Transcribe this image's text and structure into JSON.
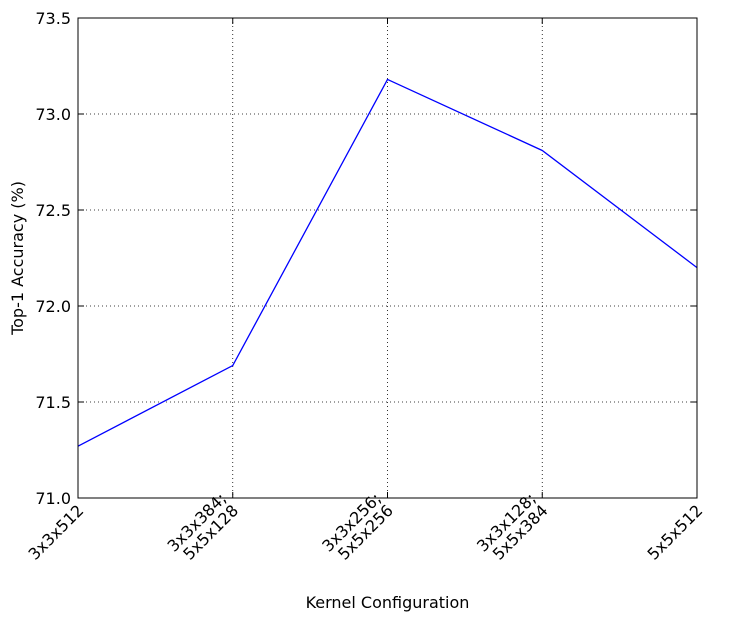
{
  "chart_data": {
    "type": "line",
    "title": "",
    "xlabel": "Kernel Configuration",
    "ylabel": "Top-1 Accuracy (%)",
    "categories": [
      "3x3x512",
      "3x3x384;\n5x5x128",
      "3x3x256;\n5x5x256",
      "3x3x128;\n5x5x384",
      "5x5x512"
    ],
    "series": [
      {
        "values": [
          71.27,
          71.69,
          73.18,
          72.81,
          72.2
        ]
      }
    ],
    "ylim": [
      71.0,
      73.5
    ],
    "yticks": [
      "71.0",
      "71.5",
      "72.0",
      "72.5",
      "73.0",
      "73.5"
    ],
    "grid": true,
    "line_color": "#0000ff"
  }
}
